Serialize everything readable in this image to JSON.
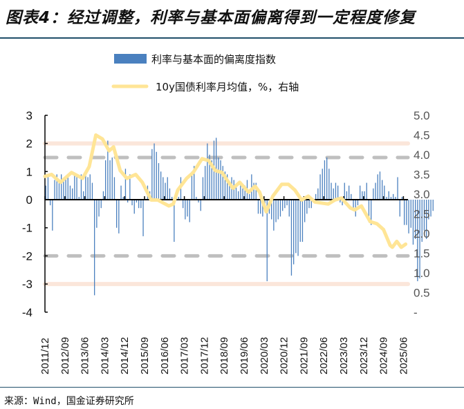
{
  "title": "图表4：经过调整，利率与基本面偏离得到一定程度修复",
  "source": "来源：Wind，国金证券研究所",
  "chart_data": {
    "type": "bar+line",
    "title": "图表4：经过调整，利率与基本面偏离得到一定程度修复",
    "colors": {
      "bars": "#4a80bf",
      "line": "#ffe596",
      "bands": "#fbe6da",
      "dashed": "#bfbfbf"
    },
    "legend": [
      "利率与基本面的偏离度指数",
      "10y国债利率月均值，%，右轴"
    ],
    "legend_placement": "top-center",
    "left_axis": {
      "ylim": [
        -4,
        3
      ],
      "ticks": [
        "3",
        "2",
        "1",
        "0",
        "-1",
        "-2",
        "-3",
        "-4"
      ]
    },
    "right_axis": {
      "ylim": [
        0,
        5
      ],
      "ticks": [
        "5.0",
        "4.5",
        "4.0",
        "3.5",
        "3.0",
        "2.5",
        "2.0",
        "1.5",
        "1.0",
        "0.5",
        "-"
      ]
    },
    "reference_lines": {
      "solid_bands": [
        2,
        -3
      ],
      "dashed": [
        1.5,
        -2
      ]
    },
    "start_month": "2011/12",
    "x_tick_labels": [
      "2011/12",
      "2012/09",
      "2013/06",
      "2014/03",
      "2014/12",
      "2015/09",
      "2016/06",
      "2017/03",
      "2017/12",
      "2018/09",
      "2019/06",
      "2020/03",
      "2020/12",
      "2021/09",
      "2022/06",
      "2023/03",
      "2023/12",
      "2024/09",
      "2025/06"
    ],
    "deviation_index": [
      0.5,
      0.9,
      -0.2,
      -1.1,
      0.7,
      0.9,
      0.6,
      0.9,
      0.7,
      0.8,
      0.9,
      0.5,
      0.4,
      0.9,
      0.8,
      0.1,
      0.9,
      0.3,
      0.9,
      0.8,
      0.9,
      0.6,
      -3.4,
      -1.0,
      -0.6,
      -0.3,
      0.3,
      1.4,
      2.1,
      1.4,
      1.5,
      0.8,
      -1.0,
      -1.2,
      0.5,
      0.1,
      1.1,
      -0.1,
      0.9,
      -0.2,
      -0.5,
      -0.1,
      -0.3,
      -0.3,
      -1.3,
      0.0,
      0.5,
      0.3,
      1.8,
      2.0,
      1.7,
      1.3,
      1.0,
      0.8,
      0.6,
      0.8,
      0.4,
      0.1,
      -1.5,
      0.3,
      0.1,
      0.8,
      -0.3,
      -0.7,
      -0.6,
      -0.8,
      1.0,
      1.2,
      0.1,
      -0.1,
      -0.4,
      0.8,
      1.2,
      2.0,
      1.6,
      1.4,
      2.1,
      2.2,
      1.5,
      1.4,
      1.2,
      1.0,
      0.9,
      0.5,
      0.8,
      0.7,
      0.5,
      0.3,
      0.6,
      0.4,
      0.5,
      0.7,
      0.2,
      0.9,
      0.6,
      0.6,
      -0.5,
      -0.5,
      -0.6,
      -0.4,
      -2.9,
      -0.5,
      -0.7,
      -1.1,
      -0.8,
      -0.7,
      -0.6,
      -0.4,
      -0.3,
      -0.2,
      -0.6,
      -2.7,
      -2.3,
      -1.9,
      -2.0,
      -1.5,
      -1.5,
      -0.8,
      -0.5,
      -0.3,
      -0.3,
      -0.1,
      0.2,
      0.4,
      0.9,
      1.1,
      1.4,
      1.5,
      1.1,
      0.6,
      0.4,
      0.6,
      0.5,
      -0.1,
      -0.2,
      0.6,
      0.3,
      0.5,
      0.2,
      -0.3,
      -0.6,
      -0.2,
      0.5,
      0.3,
      0.3,
      0.6,
      -0.8,
      -0.9,
      0.4,
      0.6,
      0.9,
      1.0,
      0.7,
      0.5,
      0.1,
      0.3,
      0.1,
      0.2,
      0.1,
      0.8,
      -0.6,
      0.1,
      -0.9,
      -0.9,
      -1.2,
      -1.0,
      -1.6,
      -1.4,
      -2.9,
      -2.8,
      -1.5,
      -1.1,
      -1.4,
      -0.7,
      -0.6,
      -0.4
    ],
    "yield_10y": [
      [
        "2011/12",
        3.45
      ],
      [
        "2012/03",
        3.5
      ],
      [
        "2012/07",
        3.3
      ],
      [
        "2012/12",
        3.55
      ],
      [
        "2013/05",
        3.4
      ],
      [
        "2013/08",
        3.7
      ],
      [
        "2013/11",
        4.5
      ],
      [
        "2014/02",
        4.4
      ],
      [
        "2014/05",
        4.1
      ],
      [
        "2014/07",
        4.2
      ],
      [
        "2014/10",
        3.6
      ],
      [
        "2015/01",
        3.4
      ],
      [
        "2015/05",
        3.5
      ],
      [
        "2015/08",
        3.3
      ],
      [
        "2015/12",
        2.85
      ],
      [
        "2016/03",
        2.85
      ],
      [
        "2016/08",
        2.7
      ],
      [
        "2016/10",
        2.75
      ],
      [
        "2016/12",
        3.1
      ],
      [
        "2017/04",
        3.4
      ],
      [
        "2017/07",
        3.55
      ],
      [
        "2017/11",
        3.9
      ],
      [
        "2018/02",
        3.85
      ],
      [
        "2018/05",
        3.6
      ],
      [
        "2018/08",
        3.55
      ],
      [
        "2018/11",
        3.3
      ],
      [
        "2019/01",
        3.15
      ],
      [
        "2019/04",
        3.3
      ],
      [
        "2019/08",
        3.05
      ],
      [
        "2019/11",
        3.2
      ],
      [
        "2020/01",
        3.05
      ],
      [
        "2020/04",
        2.55
      ],
      [
        "2020/07",
        2.95
      ],
      [
        "2020/11",
        3.25
      ],
      [
        "2021/02",
        3.25
      ],
      [
        "2021/05",
        3.1
      ],
      [
        "2021/08",
        2.85
      ],
      [
        "2021/11",
        2.95
      ],
      [
        "2022/02",
        2.8
      ],
      [
        "2022/08",
        2.75
      ],
      [
        "2022/11",
        2.85
      ],
      [
        "2023/02",
        2.9
      ],
      [
        "2023/06",
        2.65
      ],
      [
        "2023/08",
        2.6
      ],
      [
        "2023/11",
        2.7
      ],
      [
        "2024/03",
        2.3
      ],
      [
        "2024/06",
        2.25
      ],
      [
        "2024/09",
        2.1
      ],
      [
        "2024/12",
        1.7
      ],
      [
        "2025/01",
        1.65
      ],
      [
        "2025/03",
        1.8
      ],
      [
        "2025/05",
        1.65
      ],
      [
        "2025/07",
        1.73
      ]
    ]
  }
}
